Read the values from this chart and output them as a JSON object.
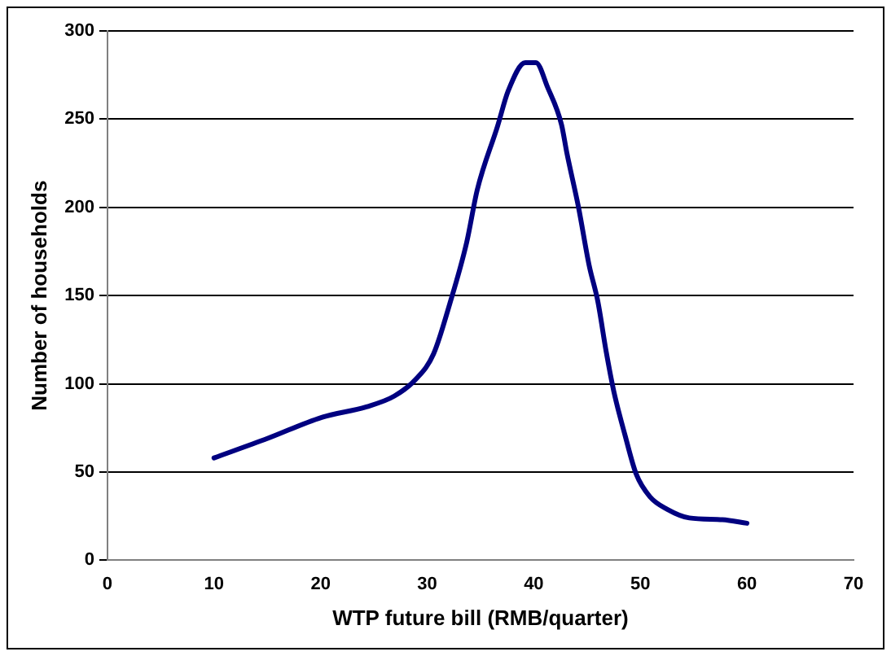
{
  "chart_data": {
    "type": "line",
    "xlabel": "WTP future bill (RMB/quarter)",
    "ylabel": "Number of households",
    "series": [
      {
        "color": "#000080",
        "x": [
          10,
          15,
          20.1,
          24.3,
          26.9,
          29,
          30.6,
          32.1,
          33.7,
          34.7,
          36.6,
          37.6,
          39.2,
          40.2,
          41.3,
          42.6,
          43.1,
          44.2,
          45.2,
          46,
          46.8,
          47.5,
          48.6,
          49.6,
          50.9,
          52.5,
          54.6,
          57.7,
          60
        ],
        "values": [
          58,
          69,
          81,
          87,
          93,
          103,
          117,
          145,
          180,
          210,
          246,
          266,
          282,
          282,
          268,
          247,
          231,
          200,
          167,
          147,
          118,
          96,
          70,
          49,
          36,
          29,
          24,
          23,
          21
        ]
      }
    ],
    "xlim": [
      0,
      70
    ],
    "xticks": [
      0,
      10,
      20,
      30,
      40,
      50,
      60,
      70
    ],
    "ylim": [
      0,
      300
    ],
    "yticks": [
      0,
      50,
      100,
      150,
      200,
      250,
      300
    ],
    "grid": "y",
    "legend": false,
    "marker": "none",
    "line_style": "solid"
  }
}
